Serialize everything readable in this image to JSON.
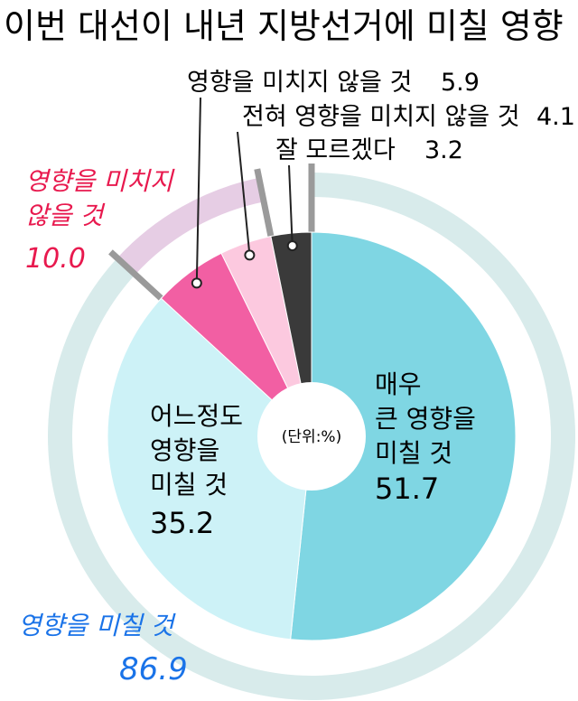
{
  "chart_data": {
    "type": "pie",
    "title": "이번 대선이 내년 지방선거에 미칠 영향",
    "unit_note": "(단위:%)",
    "slices": [
      {
        "label": "매우 큰 영향을 미칠 것",
        "label_lines": [
          "매우",
          "큰 영향을",
          "미칠 것"
        ],
        "value": 51.7,
        "color": "#7fd6e3"
      },
      {
        "label": "어느정도 영향을 미칠 것",
        "label_lines": [
          "어느정도",
          "영향을",
          "미칠 것"
        ],
        "value": 35.2,
        "color": "#cdf2f7"
      },
      {
        "label": "영향을 미치지 않을 것",
        "value": 5.9,
        "color": "#f25fa3"
      },
      {
        "label": "전혀 영향을 미치지 않을 것",
        "value": 4.1,
        "color": "#fcc9df"
      },
      {
        "label": "잘 모르겠다",
        "value": 3.2,
        "color": "#3a3a3a"
      }
    ],
    "groups": [
      {
        "label": "영향을 미칠 것",
        "value": "86.9",
        "color": "#1a73e8",
        "ring_color": "#d8ebeb"
      },
      {
        "label_lines": [
          "영향을 미치지",
          "않을 것"
        ],
        "value": "10.0",
        "color": "#e8194e",
        "ring_color": "#e6cde4"
      }
    ],
    "ring_divider_color": "#9a9a9a"
  }
}
